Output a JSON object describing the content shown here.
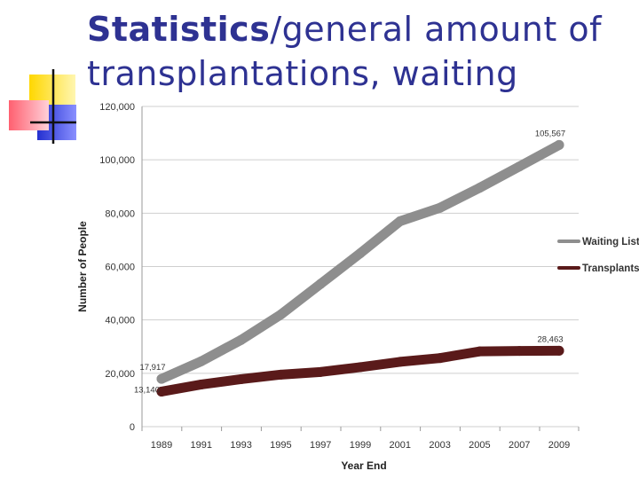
{
  "slide": {
    "title_bold": "Statistics",
    "title_rest": "/general amount of transplantations, waiting"
  },
  "colors": {
    "title": "#2e3292",
    "waiting": "#8e8e8e",
    "transplants": "#5a1a1a",
    "grid": "#cfcfcf"
  },
  "chart_data": {
    "type": "line",
    "title": "",
    "xlabel": "Year End",
    "ylabel": "Number of People",
    "ylim": [
      0,
      120000
    ],
    "yticks": [
      0,
      20000,
      40000,
      60000,
      80000,
      100000,
      120000
    ],
    "ytick_labels": [
      "0",
      "20,000",
      "40,000",
      "60,000",
      "80,000",
      "100,000",
      "120,000"
    ],
    "x": [
      1989,
      1991,
      1993,
      1995,
      1997,
      1999,
      2001,
      2003,
      2005,
      2007,
      2009
    ],
    "xtick_labels": [
      "1989",
      "1991",
      "1993",
      "1995",
      "1997",
      "1999",
      "2001",
      "2003",
      "2005",
      "2007",
      "2009"
    ],
    "legend_position": "right",
    "series": [
      {
        "name": "Waiting List",
        "color": "#8e8e8e",
        "values": [
          17917,
          24500,
          32500,
          42000,
          53500,
          65000,
          77000,
          82000,
          89500,
          97500,
          105567
        ]
      },
      {
        "name": "Transplants",
        "color": "#5a1a1a",
        "values": [
          13140,
          15800,
          17800,
          19500,
          20500,
          22300,
          24300,
          25700,
          28200,
          28400,
          28463
        ]
      }
    ],
    "annotations": [
      {
        "text": "17,917",
        "series": 0,
        "index": 0,
        "anchor": "above"
      },
      {
        "text": "105,567",
        "series": 0,
        "index": 10,
        "anchor": "above"
      },
      {
        "text": "13,140",
        "series": 1,
        "index": 0,
        "anchor": "left"
      },
      {
        "text": "28,463",
        "series": 1,
        "index": 10,
        "anchor": "above"
      }
    ]
  }
}
